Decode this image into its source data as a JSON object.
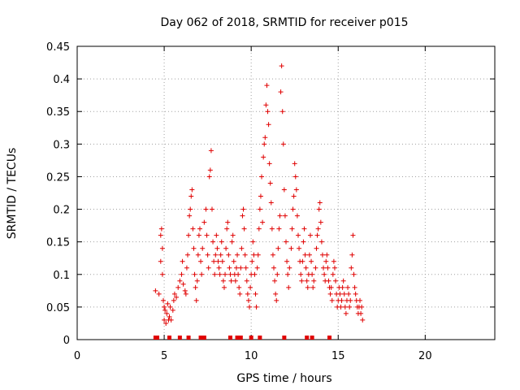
{
  "chart_data": {
    "type": "scatter",
    "title": "Day 062 of 2018, SRMTID for receiver p015",
    "xlabel": "GPS time / hours",
    "ylabel": "SRMTID / TECUs",
    "xlim": [
      0,
      24
    ],
    "ylim": [
      0,
      0.45
    ],
    "grid": true,
    "x_ticks": [
      0,
      5,
      10,
      15,
      20
    ],
    "y_ticks": [
      0,
      0.05,
      0.1,
      0.15,
      0.2,
      0.25,
      0.3,
      0.35,
      0.4,
      0.45
    ],
    "x_tick_labels": [
      "0",
      "5",
      "10",
      "15",
      "20"
    ],
    "y_tick_labels": [
      "0",
      "0.05",
      "0.1",
      "0.15",
      "0.2",
      "0.25",
      "0.3",
      "0.35",
      "0.4",
      "0.45"
    ],
    "marker_color": "#e00000",
    "baseline_markers_x": [
      4.5,
      4.6,
      5.3,
      5.9,
      6.4,
      7.1,
      7.3,
      8.8,
      9.2,
      9.4,
      10.0,
      10.5,
      11.9,
      13.2,
      13.5,
      14.5
    ],
    "series": [
      {
        "name": "SRMTID",
        "points": [
          [
            4.5,
            0.075
          ],
          [
            4.7,
            0.07
          ],
          [
            4.8,
            0.12
          ],
          [
            4.8,
            0.16
          ],
          [
            4.85,
            0.17
          ],
          [
            4.9,
            0.14
          ],
          [
            4.9,
            0.1
          ],
          [
            4.95,
            0.06
          ],
          [
            5.0,
            0.05
          ],
          [
            5.0,
            0.03
          ],
          [
            5.05,
            0.045
          ],
          [
            5.1,
            0.025
          ],
          [
            5.15,
            0.04
          ],
          [
            5.2,
            0.055
          ],
          [
            5.25,
            0.03
          ],
          [
            5.3,
            0.035
          ],
          [
            5.35,
            0.05
          ],
          [
            5.4,
            0.03
          ],
          [
            5.5,
            0.045
          ],
          [
            5.55,
            0.06
          ],
          [
            5.6,
            0.07
          ],
          [
            5.7,
            0.065
          ],
          [
            5.8,
            0.08
          ],
          [
            5.9,
            0.09
          ],
          [
            6.0,
            0.1
          ],
          [
            6.05,
            0.12
          ],
          [
            6.1,
            0.085
          ],
          [
            6.2,
            0.075
          ],
          [
            6.25,
            0.07
          ],
          [
            6.3,
            0.11
          ],
          [
            6.35,
            0.13
          ],
          [
            6.4,
            0.16
          ],
          [
            6.45,
            0.19
          ],
          [
            6.5,
            0.2
          ],
          [
            6.55,
            0.22
          ],
          [
            6.6,
            0.23
          ],
          [
            6.65,
            0.17
          ],
          [
            6.7,
            0.14
          ],
          [
            6.75,
            0.1
          ],
          [
            6.8,
            0.08
          ],
          [
            6.85,
            0.06
          ],
          [
            6.9,
            0.09
          ],
          [
            6.95,
            0.13
          ],
          [
            7.0,
            0.16
          ],
          [
            7.05,
            0.17
          ],
          [
            7.1,
            0.12
          ],
          [
            7.15,
            0.1
          ],
          [
            7.2,
            0.14
          ],
          [
            7.3,
            0.18
          ],
          [
            7.4,
            0.2
          ],
          [
            7.45,
            0.16
          ],
          [
            7.5,
            0.13
          ],
          [
            7.55,
            0.11
          ],
          [
            7.6,
            0.25
          ],
          [
            7.65,
            0.26
          ],
          [
            7.7,
            0.29
          ],
          [
            7.75,
            0.2
          ],
          [
            7.8,
            0.15
          ],
          [
            7.85,
            0.12
          ],
          [
            7.9,
            0.1
          ],
          [
            7.95,
            0.13
          ],
          [
            8.0,
            0.16
          ],
          [
            8.05,
            0.14
          ],
          [
            8.1,
            0.12
          ],
          [
            8.15,
            0.11
          ],
          [
            8.2,
            0.1
          ],
          [
            8.25,
            0.13
          ],
          [
            8.3,
            0.15
          ],
          [
            8.35,
            0.12
          ],
          [
            8.4,
            0.09
          ],
          [
            8.45,
            0.08
          ],
          [
            8.5,
            0.1
          ],
          [
            8.55,
            0.14
          ],
          [
            8.6,
            0.17
          ],
          [
            8.65,
            0.18
          ],
          [
            8.7,
            0.13
          ],
          [
            8.75,
            0.11
          ],
          [
            8.8,
            0.1
          ],
          [
            8.85,
            0.09
          ],
          [
            8.9,
            0.15
          ],
          [
            8.95,
            0.16
          ],
          [
            9.0,
            0.12
          ],
          [
            9.05,
            0.1
          ],
          [
            9.1,
            0.09
          ],
          [
            9.15,
            0.11
          ],
          [
            9.2,
            0.13
          ],
          [
            9.25,
            0.1
          ],
          [
            9.3,
            0.08
          ],
          [
            9.35,
            0.07
          ],
          [
            9.4,
            0.11
          ],
          [
            9.45,
            0.14
          ],
          [
            9.5,
            0.19
          ],
          [
            9.55,
            0.2
          ],
          [
            9.6,
            0.17
          ],
          [
            9.65,
            0.13
          ],
          [
            9.7,
            0.11
          ],
          [
            9.75,
            0.09
          ],
          [
            9.8,
            0.07
          ],
          [
            9.85,
            0.06
          ],
          [
            9.9,
            0.05
          ],
          [
            9.95,
            0.08
          ],
          [
            10.0,
            0.1
          ],
          [
            10.05,
            0.12
          ],
          [
            10.1,
            0.15
          ],
          [
            10.15,
            0.13
          ],
          [
            10.2,
            0.1
          ],
          [
            10.25,
            0.07
          ],
          [
            10.3,
            0.05
          ],
          [
            10.35,
            0.11
          ],
          [
            10.4,
            0.13
          ],
          [
            10.45,
            0.17
          ],
          [
            10.5,
            0.2
          ],
          [
            10.55,
            0.22
          ],
          [
            10.6,
            0.25
          ],
          [
            10.65,
            0.18
          ],
          [
            10.7,
            0.28
          ],
          [
            10.75,
            0.3
          ],
          [
            10.8,
            0.31
          ],
          [
            10.85,
            0.36
          ],
          [
            10.9,
            0.39
          ],
          [
            10.95,
            0.35
          ],
          [
            11.0,
            0.33
          ],
          [
            11.05,
            0.27
          ],
          [
            11.1,
            0.24
          ],
          [
            11.15,
            0.21
          ],
          [
            11.2,
            0.17
          ],
          [
            11.25,
            0.13
          ],
          [
            11.3,
            0.11
          ],
          [
            11.35,
            0.09
          ],
          [
            11.4,
            0.07
          ],
          [
            11.45,
            0.06
          ],
          [
            11.5,
            0.1
          ],
          [
            11.55,
            0.14
          ],
          [
            11.6,
            0.17
          ],
          [
            11.65,
            0.19
          ],
          [
            11.7,
            0.38
          ],
          [
            11.75,
            0.42
          ],
          [
            11.8,
            0.35
          ],
          [
            11.85,
            0.3
          ],
          [
            11.9,
            0.23
          ],
          [
            11.95,
            0.19
          ],
          [
            12.0,
            0.15
          ],
          [
            12.05,
            0.12
          ],
          [
            12.1,
            0.1
          ],
          [
            12.15,
            0.08
          ],
          [
            12.2,
            0.11
          ],
          [
            12.3,
            0.14
          ],
          [
            12.35,
            0.17
          ],
          [
            12.4,
            0.2
          ],
          [
            12.45,
            0.22
          ],
          [
            12.5,
            0.27
          ],
          [
            12.55,
            0.25
          ],
          [
            12.6,
            0.23
          ],
          [
            12.65,
            0.19
          ],
          [
            12.7,
            0.16
          ],
          [
            12.75,
            0.14
          ],
          [
            12.8,
            0.12
          ],
          [
            12.85,
            0.1
          ],
          [
            12.9,
            0.09
          ],
          [
            12.95,
            0.12
          ],
          [
            13.0,
            0.15
          ],
          [
            13.05,
            0.17
          ],
          [
            13.1,
            0.13
          ],
          [
            13.15,
            0.11
          ],
          [
            13.2,
            0.09
          ],
          [
            13.25,
            0.08
          ],
          [
            13.3,
            0.1
          ],
          [
            13.35,
            0.13
          ],
          [
            13.4,
            0.16
          ],
          [
            13.45,
            0.12
          ],
          [
            13.5,
            0.1
          ],
          [
            13.55,
            0.08
          ],
          [
            13.6,
            0.09
          ],
          [
            13.7,
            0.11
          ],
          [
            13.75,
            0.14
          ],
          [
            13.8,
            0.16
          ],
          [
            13.85,
            0.17
          ],
          [
            13.9,
            0.2
          ],
          [
            13.95,
            0.21
          ],
          [
            14.0,
            0.18
          ],
          [
            14.05,
            0.15
          ],
          [
            14.1,
            0.13
          ],
          [
            14.15,
            0.11
          ],
          [
            14.2,
            0.1
          ],
          [
            14.25,
            0.09
          ],
          [
            14.3,
            0.12
          ],
          [
            14.35,
            0.13
          ],
          [
            14.4,
            0.11
          ],
          [
            14.45,
            0.09
          ],
          [
            14.5,
            0.08
          ],
          [
            14.55,
            0.07
          ],
          [
            14.6,
            0.08
          ],
          [
            14.65,
            0.06
          ],
          [
            14.7,
            0.1
          ],
          [
            14.75,
            0.12
          ],
          [
            14.8,
            0.11
          ],
          [
            14.85,
            0.09
          ],
          [
            14.9,
            0.07
          ],
          [
            14.95,
            0.05
          ],
          [
            15.0,
            0.06
          ],
          [
            15.05,
            0.08
          ],
          [
            15.1,
            0.07
          ],
          [
            15.15,
            0.05
          ],
          [
            15.2,
            0.06
          ],
          [
            15.25,
            0.08
          ],
          [
            15.3,
            0.09
          ],
          [
            15.35,
            0.07
          ],
          [
            15.4,
            0.05
          ],
          [
            15.45,
            0.04
          ],
          [
            15.5,
            0.06
          ],
          [
            15.55,
            0.08
          ],
          [
            15.6,
            0.07
          ],
          [
            15.65,
            0.05
          ],
          [
            15.7,
            0.06
          ],
          [
            15.75,
            0.11
          ],
          [
            15.8,
            0.13
          ],
          [
            15.85,
            0.16
          ],
          [
            15.9,
            0.1
          ],
          [
            15.95,
            0.08
          ],
          [
            16.0,
            0.07
          ],
          [
            16.05,
            0.06
          ],
          [
            16.1,
            0.05
          ],
          [
            16.15,
            0.04
          ],
          [
            16.2,
            0.05
          ],
          [
            16.25,
            0.06
          ],
          [
            16.3,
            0.04
          ],
          [
            16.35,
            0.05
          ],
          [
            16.4,
            0.03
          ]
        ]
      }
    ]
  }
}
